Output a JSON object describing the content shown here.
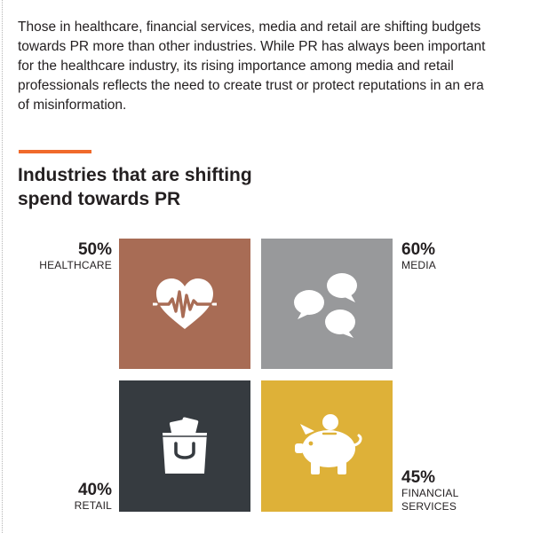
{
  "intro": {
    "text": "Those in healthcare, financial services, media and retail are shifting budgets towards PR more than other industries. While PR has always been important for the healthcare industry, its rising importance among media and retail professionals reflects the need to create trust or protect reputations in an era of misinformation."
  },
  "chart_data": {
    "type": "table",
    "title": "Industries that are shifting spend towards PR",
    "unit": "%",
    "categories": [
      "HEALTHCARE",
      "MEDIA",
      "RETAIL",
      "FINANCIAL SERVICES"
    ],
    "values": [
      50,
      60,
      40,
      45
    ],
    "value_labels": [
      "50%",
      "60%",
      "40%",
      "45%"
    ],
    "label_lines": [
      [
        "HEALTHCARE"
      ],
      [
        "MEDIA"
      ],
      [
        "RETAIL"
      ],
      [
        "FINANCIAL",
        "SERVICES"
      ]
    ],
    "colors": [
      "#a86c55",
      "#98999b",
      "#363b40",
      "#deb138"
    ],
    "icons": [
      "heart-pulse-icon",
      "speech-bubbles-icon",
      "shopping-bag-icon",
      "piggy-bank-icon"
    ],
    "accent_color": "#f06a2b"
  }
}
